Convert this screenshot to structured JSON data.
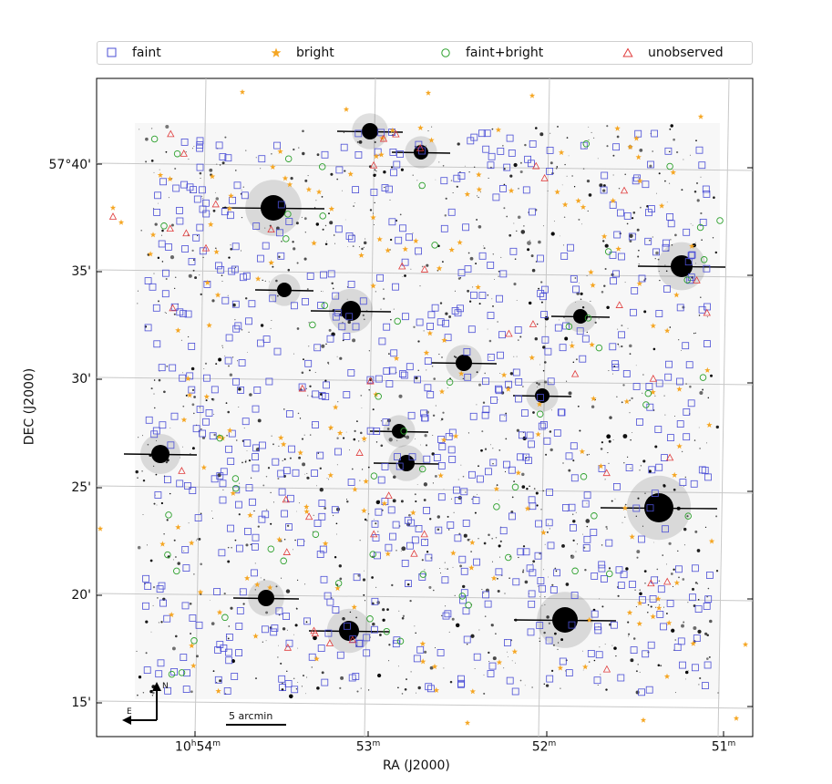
{
  "legend": {
    "items": [
      {
        "label": "faint",
        "marker": "square",
        "color": "#4b4fd6"
      },
      {
        "label": "bright",
        "marker": "star",
        "color": "#f5a623"
      },
      {
        "label": "faint+bright",
        "marker": "circle",
        "color": "#2ca02c"
      },
      {
        "label": "unobserved",
        "marker": "triangle",
        "color": "#e03c3c"
      }
    ]
  },
  "axes": {
    "xlabel": "RA (J2000)",
    "ylabel": "DEC (J2000)",
    "xticks": [
      {
        "main": "10",
        "sup1": "h",
        "main2": "54",
        "sup2": "m"
      },
      {
        "main": "",
        "sup1": "",
        "main2": "53",
        "sup2": "m"
      },
      {
        "main": "",
        "sup1": "",
        "main2": "52",
        "sup2": "m"
      },
      {
        "main": "",
        "sup1": "",
        "main2": "51",
        "sup2": "m"
      }
    ],
    "yticks": [
      "57°40'",
      "35'",
      "30'",
      "25'",
      "20'",
      "15'"
    ]
  },
  "scale_bar": {
    "label": "5 arcmin"
  },
  "compass": {
    "north": "N",
    "east": "E"
  }
}
